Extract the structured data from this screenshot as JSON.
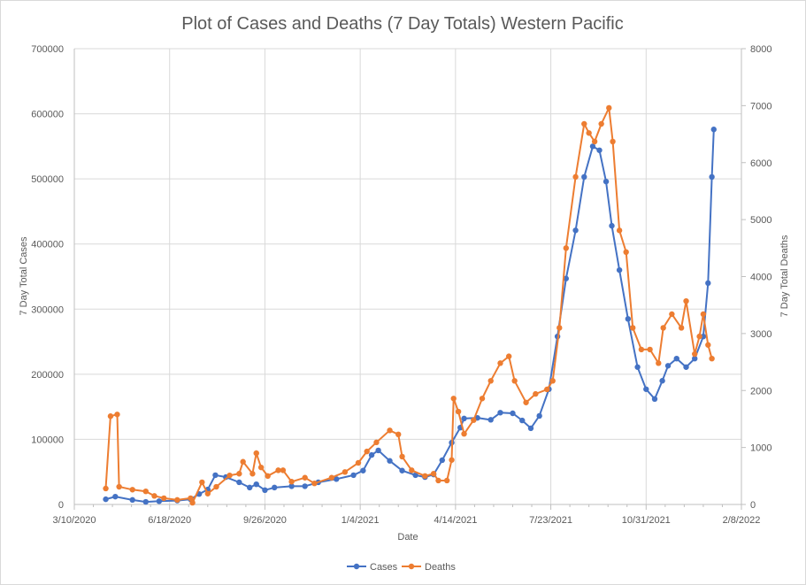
{
  "chart_data": {
    "type": "line",
    "title": "Plot of Cases and Deaths (7 Day Totals) Western Pacific",
    "xlabel": "Date",
    "ylabel": "7 Day Total Cases",
    "y2label": "7 Day Total Deaths",
    "x_units": "days since 3/10/2020",
    "xlim": [
      0,
      700
    ],
    "ylim": [
      0,
      700000
    ],
    "y2lim": [
      0,
      8000
    ],
    "x_ticks": [
      "3/10/2020",
      "6/18/2020",
      "9/26/2020",
      "1/4/2021",
      "4/14/2021",
      "7/23/2021",
      "10/31/2021",
      "2/8/2022"
    ],
    "y_ticks": [
      "0",
      "100000",
      "200000",
      "300000",
      "400000",
      "500000",
      "600000",
      "700000"
    ],
    "y2_ticks": [
      "0",
      "1000",
      "2000",
      "3000",
      "4000",
      "5000",
      "6000",
      "7000",
      "8000"
    ],
    "grid": true,
    "legend_position": "bottom",
    "series": [
      {
        "name": "Cases",
        "axis": "left",
        "color": "#4472C4",
        "x": [
          33,
          43,
          61,
          75,
          89,
          108,
          122,
          131,
          140,
          148,
          159,
          173,
          184,
          191,
          200,
          210,
          228,
          242,
          256,
          275,
          293,
          303,
          312,
          319,
          331,
          344,
          358,
          368,
          377,
          386,
          396,
          405,
          409,
          423,
          437,
          447,
          460,
          470,
          479,
          488,
          498,
          507,
          516,
          526,
          535,
          544,
          551,
          558,
          564,
          572,
          581,
          591,
          600,
          609,
          617,
          623,
          632,
          642,
          651,
          660,
          665,
          669,
          671
        ],
        "values": [
          8000,
          12000,
          7000,
          4000,
          5000,
          6000,
          8000,
          16000,
          23000,
          45000,
          42000,
          34000,
          26000,
          31000,
          22000,
          26000,
          28000,
          28000,
          34000,
          39000,
          45000,
          52000,
          76000,
          83000,
          67000,
          52000,
          45000,
          42000,
          46000,
          68000,
          95000,
          118000,
          132000,
          133000,
          130000,
          141000,
          140000,
          129000,
          117000,
          136000,
          177000,
          258000,
          347000,
          421000,
          503000,
          550000,
          544000,
          496000,
          428000,
          360000,
          285000,
          211000,
          177000,
          162000,
          190000,
          213000,
          224000,
          211000,
          224000,
          258000,
          340000,
          503000,
          576000
        ]
      },
      {
        "name": "Deaths",
        "axis": "right",
        "color": "#ED7D31",
        "x": [
          33,
          38,
          45,
          47,
          61,
          75,
          84,
          94,
          108,
          122,
          124,
          134,
          140,
          149,
          163,
          173,
          177,
          187,
          191,
          196,
          203,
          214,
          219,
          228,
          242,
          252,
          270,
          284,
          298,
          307,
          317,
          331,
          340,
          344,
          354,
          368,
          377,
          382,
          391,
          396,
          398,
          403,
          409,
          419,
          428,
          437,
          447,
          456,
          462,
          474,
          484,
          496,
          502,
          509,
          516,
          526,
          535,
          540,
          546,
          553,
          561,
          565,
          572,
          579,
          586,
          595,
          604,
          613,
          618,
          627,
          637,
          642,
          651,
          656,
          660,
          665,
          669
        ],
        "values": [
          280,
          1550,
          1580,
          310,
          260,
          230,
          150,
          110,
          80,
          110,
          30,
          390,
          190,
          310,
          510,
          540,
          750,
          540,
          900,
          650,
          500,
          600,
          600,
          400,
          470,
          370,
          470,
          570,
          730,
          930,
          1090,
          1300,
          1230,
          840,
          600,
          500,
          540,
          420,
          420,
          780,
          1860,
          1630,
          1240,
          1480,
          1860,
          2170,
          2480,
          2600,
          2170,
          1790,
          1940,
          2020,
          2170,
          3100,
          4500,
          5750,
          6680,
          6520,
          6370,
          6680,
          6960,
          6370,
          4810,
          4430,
          3100,
          2720,
          2720,
          2480,
          3100,
          3340,
          3100,
          3570,
          2640,
          2950,
          3340,
          2800,
          2560
        ]
      }
    ]
  }
}
